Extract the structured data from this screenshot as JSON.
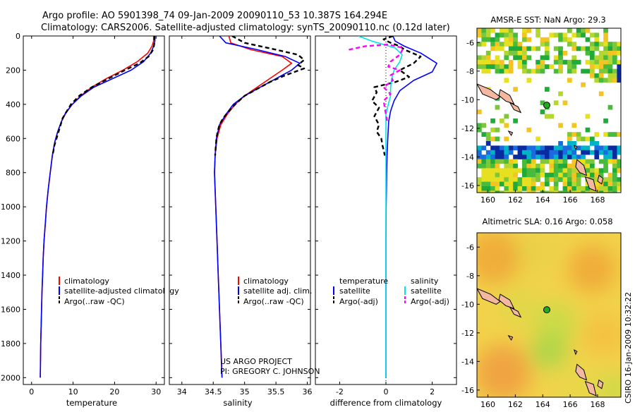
{
  "header": {
    "line1": "Argo profile: AO 5901398_74 09-Jan-2009 20090110_53 10.387S 164.294E",
    "line2": "Climatology: CARS2006. Satellite-adjusted climatology: synTS_20090110.nc (0.12d later)"
  },
  "credits": {
    "project": "US ARGO PROJECT",
    "pi": "PI: GREGORY C. JOHNSON",
    "stamp": "CSIRO 16-Jan-2009 10:32:22"
  },
  "colors": {
    "climatology": "#ff0000",
    "satellite": "#0000ff",
    "argo": "#000000",
    "salinity_satellite": "#00e5e5",
    "salinity_argo": "#ff00ff"
  },
  "chart_data": [
    {
      "type": "line",
      "xlabel": "temperature",
      "x_ticks": [
        "0",
        "10",
        "20",
        "30"
      ],
      "xlim": [
        -2,
        32
      ],
      "y_ticks": [
        "0",
        "200",
        "400",
        "600",
        "800",
        "1000",
        "1200",
        "1400",
        "1600",
        "1800",
        "2000"
      ],
      "ylim": [
        0,
        2040
      ],
      "y_reversed": true,
      "legend": [
        "climatology",
        "satellite-adjusted climatology",
        "Argo(..raw -QC)"
      ],
      "series": [
        {
          "name": "climatology",
          "style": "solid",
          "points": [
            [
              29.4,
              0
            ],
            [
              29.4,
              30
            ],
            [
              29.0,
              60
            ],
            [
              28.0,
              100
            ],
            [
              25.5,
              150
            ],
            [
              22.0,
              200
            ],
            [
              18.0,
              250
            ],
            [
              14.5,
              300
            ],
            [
              11.8,
              350
            ],
            [
              9.8,
              400
            ],
            [
              8.3,
              450
            ],
            [
              7.2,
              500
            ],
            [
              6.3,
              560
            ],
            [
              5.6,
              620
            ],
            [
              5.0,
              700
            ],
            [
              4.5,
              800
            ],
            [
              4.0,
              900
            ],
            [
              3.6,
              1000
            ],
            [
              3.3,
              1100
            ],
            [
              3.0,
              1200
            ],
            [
              2.8,
              1300
            ],
            [
              2.65,
              1400
            ],
            [
              2.5,
              1500
            ],
            [
              2.4,
              1600
            ],
            [
              2.3,
              1700
            ],
            [
              2.2,
              1800
            ],
            [
              2.15,
              1900
            ],
            [
              2.1,
              2000
            ]
          ]
        },
        {
          "name": "satellite-adjusted climatology",
          "style": "solid",
          "points": [
            [
              29.7,
              0
            ],
            [
              29.7,
              30
            ],
            [
              29.4,
              60
            ],
            [
              28.7,
              100
            ],
            [
              27.0,
              150
            ],
            [
              24.0,
              200
            ],
            [
              19.5,
              250
            ],
            [
              15.0,
              300
            ],
            [
              12.0,
              350
            ],
            [
              9.8,
              400
            ],
            [
              8.2,
              450
            ],
            [
              7.2,
              500
            ],
            [
              6.3,
              560
            ],
            [
              5.6,
              620
            ],
            [
              5.0,
              700
            ],
            [
              4.5,
              800
            ],
            [
              4.0,
              900
            ],
            [
              3.6,
              1000
            ],
            [
              3.3,
              1100
            ],
            [
              3.0,
              1200
            ],
            [
              2.8,
              1300
            ],
            [
              2.65,
              1400
            ],
            [
              2.5,
              1500
            ],
            [
              2.4,
              1600
            ],
            [
              2.3,
              1700
            ],
            [
              2.2,
              1800
            ],
            [
              2.15,
              1900
            ],
            [
              2.1,
              2000
            ]
          ]
        },
        {
          "name": "Argo(..raw -QC)",
          "style": "dashed",
          "points": [
            [
              29.6,
              0
            ],
            [
              29.6,
              40
            ],
            [
              29.3,
              80
            ],
            [
              28.2,
              120
            ],
            [
              26.0,
              160
            ],
            [
              22.5,
              200
            ],
            [
              18.5,
              250
            ],
            [
              14.5,
              300
            ],
            [
              11.5,
              350
            ],
            [
              9.5,
              400
            ],
            [
              8.5,
              440
            ],
            [
              7.5,
              480
            ],
            [
              7.0,
              520
            ],
            [
              6.5,
              560
            ],
            [
              6.0,
              600
            ],
            [
              5.5,
              640
            ],
            [
              5.2,
              680
            ],
            [
              4.9,
              700
            ]
          ]
        }
      ]
    },
    {
      "type": "line",
      "xlabel": "salinity",
      "x_ticks": [
        "34",
        "34.5",
        "35",
        "35.5",
        "36"
      ],
      "xlim": [
        33.8,
        36.05
      ],
      "ylim": [
        0,
        2040
      ],
      "y_reversed": true,
      "legend": [
        "climatology",
        "satellite adj. clim.",
        "Argo(..raw -QC)"
      ],
      "series": [
        {
          "name": "climatology",
          "style": "solid",
          "points": [
            [
              34.75,
              0
            ],
            [
              34.78,
              40
            ],
            [
              35.1,
              80
            ],
            [
              35.6,
              120
            ],
            [
              35.75,
              160
            ],
            [
              35.6,
              200
            ],
            [
              35.4,
              250
            ],
            [
              35.2,
              300
            ],
            [
              35.0,
              350
            ],
            [
              34.85,
              400
            ],
            [
              34.72,
              460
            ],
            [
              34.62,
              520
            ],
            [
              34.56,
              600
            ],
            [
              34.53,
              700
            ],
            [
              34.52,
              800
            ],
            [
              34.53,
              900
            ],
            [
              34.54,
              1000
            ],
            [
              34.56,
              1200
            ],
            [
              34.58,
              1400
            ],
            [
              34.6,
              1600
            ],
            [
              34.62,
              1800
            ],
            [
              34.64,
              2000
            ]
          ]
        },
        {
          "name": "satellite adj. clim.",
          "style": "solid",
          "points": [
            [
              34.6,
              0
            ],
            [
              34.7,
              40
            ],
            [
              35.2,
              80
            ],
            [
              35.65,
              120
            ],
            [
              35.88,
              160
            ],
            [
              35.75,
              200
            ],
            [
              35.5,
              250
            ],
            [
              35.25,
              300
            ],
            [
              35.0,
              350
            ],
            [
              34.82,
              400
            ],
            [
              34.7,
              460
            ],
            [
              34.6,
              520
            ],
            [
              34.55,
              600
            ],
            [
              34.53,
              700
            ],
            [
              34.52,
              800
            ],
            [
              34.53,
              900
            ],
            [
              34.54,
              1000
            ],
            [
              34.56,
              1200
            ],
            [
              34.58,
              1400
            ],
            [
              34.6,
              1600
            ],
            [
              34.62,
              1800
            ],
            [
              34.64,
              2000
            ]
          ]
        },
        {
          "name": "Argo(..raw -QC)",
          "style": "dashed",
          "points": [
            [
              34.8,
              0
            ],
            [
              35.0,
              40
            ],
            [
              35.5,
              80
            ],
            [
              35.85,
              110
            ],
            [
              35.95,
              140
            ],
            [
              35.85,
              170
            ],
            [
              35.95,
              190
            ],
            [
              35.65,
              230
            ],
            [
              35.4,
              270
            ],
            [
              35.2,
              310
            ],
            [
              35.0,
              350
            ],
            [
              34.85,
              400
            ],
            [
              34.75,
              440
            ],
            [
              34.66,
              480
            ],
            [
              34.6,
              520
            ],
            [
              34.57,
              560
            ],
            [
              34.55,
              600
            ],
            [
              34.54,
              650
            ],
            [
              34.53,
              700
            ]
          ]
        }
      ]
    },
    {
      "type": "line",
      "xlabel": "difference from climatology",
      "x_ticks": [
        "-2",
        "0",
        "2"
      ],
      "xlim": [
        -3.05,
        3.05
      ],
      "ylim": [
        0,
        2040
      ],
      "y_reversed": true,
      "legend_temperature": {
        "heading": "temperature",
        "items": [
          "satellite",
          "Argo(-adj)"
        ]
      },
      "legend_salinity": {
        "heading": "salinity",
        "items": [
          "satellite",
          "Argo(-adj)"
        ]
      },
      "series": [
        {
          "name": "temperature satellite",
          "style": "solid",
          "points": [
            [
              0.3,
              0
            ],
            [
              0.4,
              30
            ],
            [
              0.8,
              60
            ],
            [
              1.5,
              100
            ],
            [
              2.2,
              160
            ],
            [
              2.0,
              210
            ],
            [
              1.2,
              260
            ],
            [
              0.6,
              320
            ],
            [
              0.35,
              380
            ],
            [
              0.2,
              440
            ],
            [
              0.12,
              500
            ],
            [
              0.08,
              600
            ],
            [
              0.05,
              700
            ],
            [
              0.03,
              800
            ],
            [
              0.02,
              900
            ],
            [
              0.01,
              1000
            ],
            [
              0,
              1200
            ],
            [
              0,
              1500
            ],
            [
              0,
              2000
            ]
          ]
        },
        {
          "name": "temperature Argo(-adj)",
          "style": "dashed",
          "points": [
            [
              0.3,
              0
            ],
            [
              -0.1,
              20
            ],
            [
              0.2,
              40
            ],
            [
              0.6,
              60
            ],
            [
              0.8,
              80
            ],
            [
              1.5,
              120
            ],
            [
              1.2,
              160
            ],
            [
              0.6,
              200
            ],
            [
              1.0,
              240
            ],
            [
              0.4,
              270
            ],
            [
              -0.5,
              300
            ],
            [
              -0.4,
              330
            ],
            [
              -0.6,
              380
            ],
            [
              -0.3,
              420
            ],
            [
              -0.5,
              470
            ],
            [
              -0.3,
              520
            ],
            [
              -0.4,
              560
            ],
            [
              -0.2,
              600
            ],
            [
              -0.15,
              640
            ],
            [
              -0.08,
              680
            ],
            [
              -0.05,
              700
            ]
          ]
        },
        {
          "name": "salinity satellite",
          "style": "solid",
          "points": [
            [
              -1.2,
              0
            ],
            [
              -0.6,
              30
            ],
            [
              0.4,
              70
            ],
            [
              0.7,
              110
            ],
            [
              0.6,
              150
            ],
            [
              0.35,
              200
            ],
            [
              0.25,
              250
            ],
            [
              0.2,
              300
            ],
            [
              0.2,
              350
            ],
            [
              0.1,
              400
            ],
            [
              0,
              460
            ],
            [
              0,
              520
            ],
            [
              0,
              600
            ],
            [
              0,
              800
            ],
            [
              0,
              1000
            ],
            [
              0,
              1500
            ],
            [
              0,
              2000
            ]
          ]
        },
        {
          "name": "salinity Argo(-adj)",
          "style": "dashed",
          "points": [
            [
              -1.6,
              80
            ],
            [
              -0.9,
              60
            ],
            [
              0.1,
              50
            ],
            [
              0.75,
              70
            ],
            [
              0.6,
              110
            ],
            [
              0.2,
              150
            ],
            [
              0.1,
              180
            ],
            [
              0.6,
              200
            ],
            [
              0.2,
              230
            ],
            [
              0.3,
              260
            ],
            [
              -0.1,
              300
            ],
            [
              0.2,
              340
            ],
            [
              -0.1,
              380
            ],
            [
              -0.05,
              420
            ],
            [
              0,
              460
            ],
            [
              0.05,
              500
            ]
          ]
        }
      ]
    },
    {
      "type": "heatmap",
      "title": "AMSR-E SST: NaN Argo: 29.3",
      "x_ticks": [
        "160",
        "162",
        "164",
        "166",
        "168"
      ],
      "y_ticks": [
        "-6",
        "-8",
        "-10",
        "-12",
        "-14",
        "-16"
      ],
      "xlim": [
        159.2,
        169.7
      ],
      "ylim": [
        -16.5,
        -5.0
      ],
      "marker": {
        "lon": 164.294,
        "lat": -10.387
      }
    },
    {
      "type": "heatmap",
      "title": "Altimetric SLA: 0.16 Argo: 0.058",
      "x_ticks": [
        "160",
        "162",
        "164",
        "166",
        "168"
      ],
      "y_ticks": [
        "-6",
        "-8",
        "-10",
        "-12",
        "-14",
        "-16"
      ],
      "xlim": [
        159.2,
        169.7
      ],
      "ylim": [
        -16.5,
        -5.0
      ],
      "marker": {
        "lon": 164.294,
        "lat": -10.387
      }
    }
  ]
}
